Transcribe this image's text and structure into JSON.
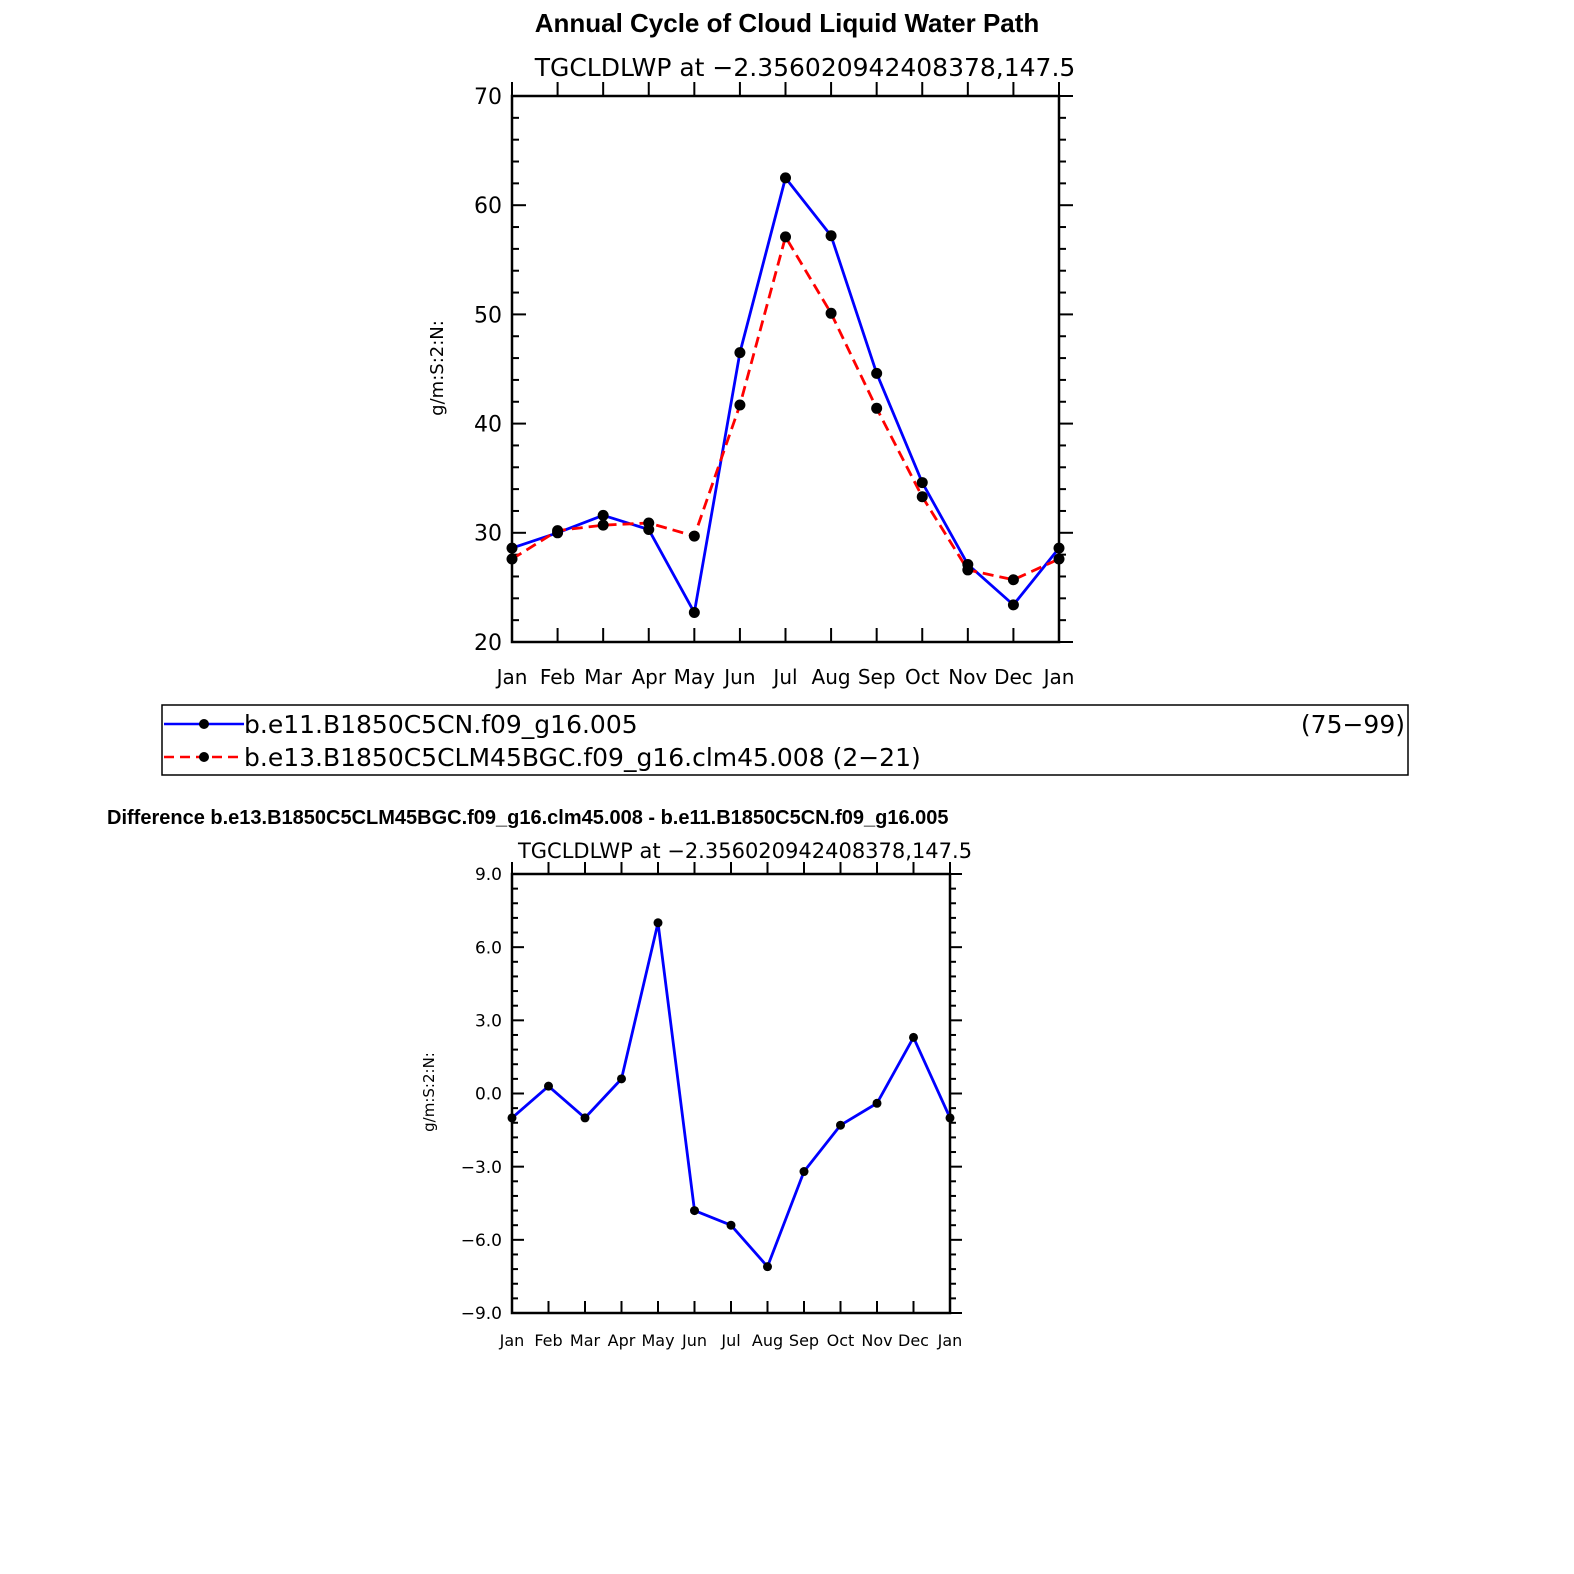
{
  "chart_data": [
    {
      "type": "line",
      "title": "Annual Cycle of Cloud Liquid Water Path",
      "subtitle": "TGCLDLWP at −2.356020942408378,147.5",
      "xlabel": "",
      "ylabel": "g/m:S:2:N:",
      "ylim": [
        20,
        70
      ],
      "yticks": [
        "20",
        "30",
        "40",
        "50",
        "60",
        "70"
      ],
      "yticks_values": [
        20,
        30,
        40,
        50,
        60,
        70
      ],
      "categories": [
        "Jan",
        "Feb",
        "Mar",
        "Apr",
        "May",
        "Jun",
        "Jul",
        "Aug",
        "Sep",
        "Oct",
        "Nov",
        "Dec",
        "Jan"
      ],
      "series": [
        {
          "name": "b.e11.B1850C5CN.f09_g16.005",
          "years": "(75−99)",
          "color": "#0000ff",
          "dash": "solid",
          "values": [
            28.6,
            30.0,
            31.6,
            30.3,
            22.7,
            46.5,
            62.5,
            57.2,
            44.6,
            34.6,
            27.1,
            23.4,
            28.6
          ]
        },
        {
          "name": "b.e13.B1850C5CLM45BGC.f09_g16.clm45.008",
          "years": "(2−21)",
          "color": "#ff0000",
          "dash": "dashed",
          "values": [
            27.6,
            30.2,
            30.7,
            30.9,
            29.7,
            41.7,
            57.1,
            50.1,
            41.4,
            33.3,
            26.6,
            25.7,
            27.6
          ]
        }
      ]
    },
    {
      "type": "line",
      "title": "Difference b.e13.B1850C5CLM45BGC.f09_g16.clm45.008 - b.e11.B1850C5CN.f09_g16.005",
      "subtitle": "TGCLDLWP at −2.356020942408378,147.5",
      "xlabel": "",
      "ylabel": "g/m:S:2:N:",
      "ylim": [
        -9,
        9
      ],
      "yticks": [
        "−9.0",
        "−6.0",
        "−3.0",
        "0.0",
        "3.0",
        "6.0",
        "9.0"
      ],
      "yticks_values": [
        -9,
        -6,
        -3,
        0,
        3,
        6,
        9
      ],
      "categories": [
        "Jan",
        "Feb",
        "Mar",
        "Apr",
        "May",
        "Jun",
        "Jul",
        "Aug",
        "Sep",
        "Oct",
        "Nov",
        "Dec",
        "Jan"
      ],
      "series": [
        {
          "name": "difference",
          "color": "#0000ff",
          "dash": "solid",
          "values": [
            -1.0,
            0.3,
            -1.0,
            0.6,
            7.0,
            -4.8,
            -5.4,
            -7.1,
            -3.2,
            -1.3,
            -0.4,
            2.3,
            -1.0
          ]
        }
      ]
    }
  ]
}
